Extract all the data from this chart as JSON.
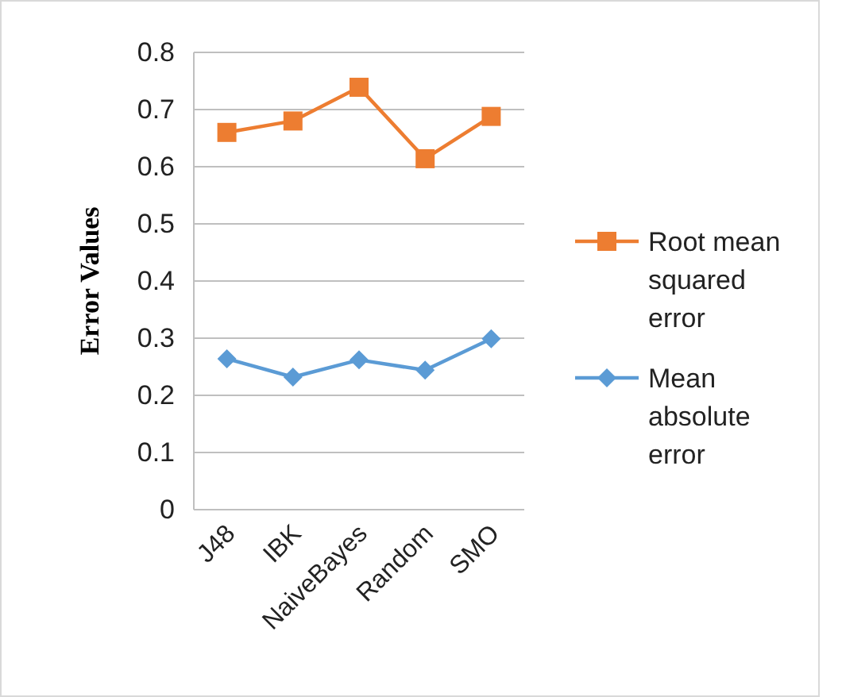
{
  "chart_data": {
    "type": "line",
    "ylabel": "Error Values",
    "categories": [
      "J48",
      "IBK",
      "NaiveBayes",
      "Random",
      "SMO"
    ],
    "series": [
      {
        "name": "Root mean squared error",
        "color": "#ed7d31",
        "marker": "square",
        "values": [
          0.66,
          0.68,
          0.739,
          0.614,
          0.688
        ]
      },
      {
        "name": "Mean absolute error",
        "color": "#5b9bd5",
        "marker": "diamond",
        "values": [
          0.264,
          0.232,
          0.262,
          0.244,
          0.299
        ]
      }
    ],
    "ylim": [
      0,
      0.8
    ],
    "yticks": [
      0,
      0.1,
      0.2,
      0.3,
      0.4,
      0.5,
      0.6,
      0.7,
      0.8
    ],
    "grid": "y",
    "legend": "right"
  }
}
